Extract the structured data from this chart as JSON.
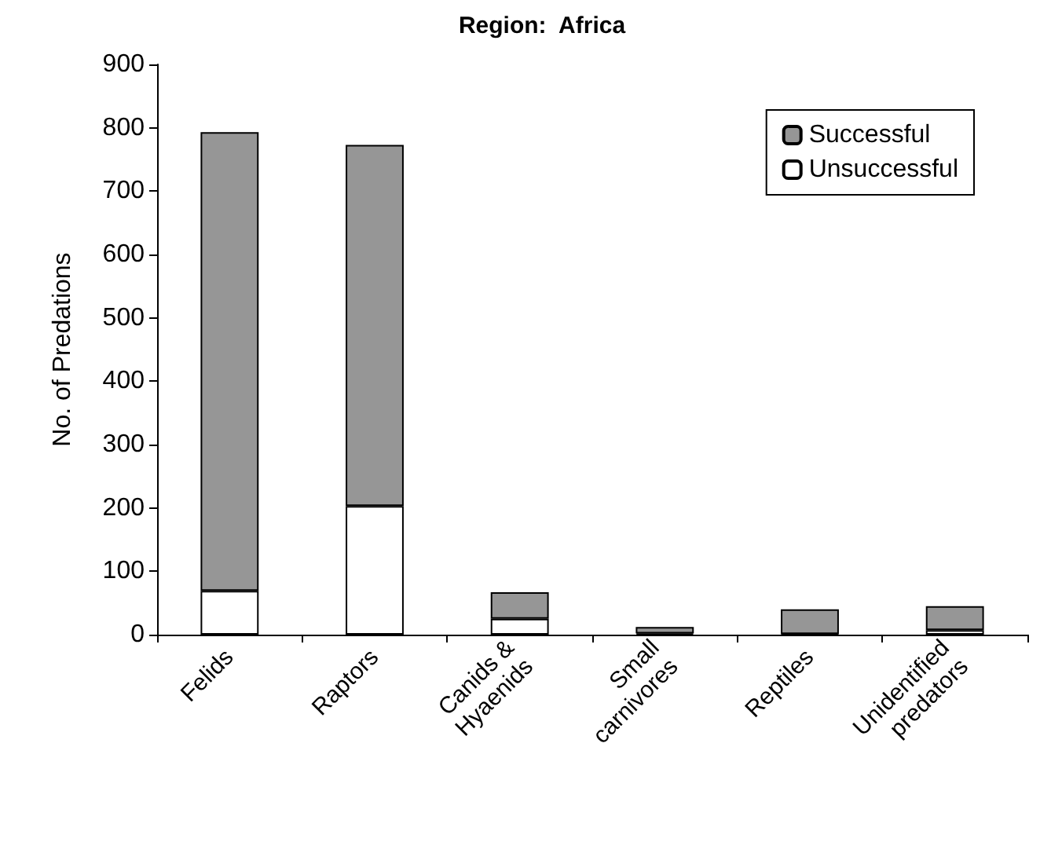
{
  "chart_data": {
    "type": "bar",
    "title": "Region:  Africa",
    "ylabel": "No. of Predations",
    "categories": [
      "Felids",
      "Raptors",
      "Canids &\nHyaenids",
      "Small\ncarnivores",
      "Reptiles",
      "Unidentified\npredators"
    ],
    "stacked": true,
    "series": [
      {
        "name": "Unsuccessful",
        "color": "#ffffff",
        "values": [
          69,
          203,
          25,
          2,
          1,
          7
        ]
      },
      {
        "name": "Successful",
        "color": "#969696",
        "values": [
          724,
          570,
          42,
          10,
          39,
          38
        ]
      }
    ],
    "ylim": [
      0,
      900
    ],
    "yticks": [
      0,
      100,
      200,
      300,
      400,
      500,
      600,
      700,
      800,
      900
    ],
    "grid": false,
    "legend": "top right"
  }
}
